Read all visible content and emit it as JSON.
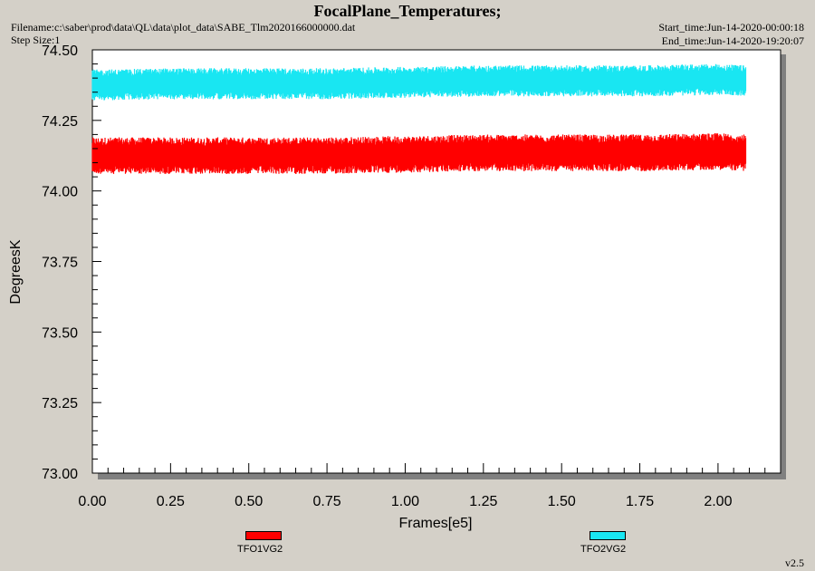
{
  "header": {
    "title": "FocalPlane_Temperatures;",
    "filename": "Filename:c:\\saber\\prod\\data\\QL\\data\\plot_data\\SABE_Tlm2020166000000.dat",
    "step_size": "Step Size:1",
    "start_time": "Start_time:Jun-14-2020-00:00:18",
    "end_time": "End_time:Jun-14-2020-19:20:07",
    "version": "v2.5"
  },
  "colors": {
    "TFO1VG2": "#ff0000",
    "TFO2VG2": "#19e6f2"
  },
  "chart_data": {
    "type": "line",
    "title": "FocalPlane_Temperatures;",
    "xlabel": "Frames[e5]",
    "ylabel": "DegreesK",
    "xlim": [
      0.0,
      2.2
    ],
    "ylim": [
      73.0,
      74.5
    ],
    "x_ticks": [
      "0.00",
      "0.25",
      "0.50",
      "0.75",
      "1.00",
      "1.25",
      "1.50",
      "1.75",
      "2.00"
    ],
    "y_ticks": [
      "73.00",
      "73.25",
      "73.50",
      "73.75",
      "74.00",
      "74.25",
      "74.50"
    ],
    "grid": false,
    "legend": "bottom",
    "series": [
      {
        "name": "TFO1VG2",
        "x_range": [
          0.0,
          2.09
        ],
        "x": [
          0.0,
          0.25,
          0.5,
          0.75,
          1.0,
          1.25,
          1.5,
          1.75,
          2.0,
          2.09
        ],
        "y_center": [
          74.125,
          74.125,
          74.125,
          74.125,
          74.13,
          74.135,
          74.135,
          74.135,
          74.14,
          74.135
        ],
        "y_min": 74.07,
        "y_max": 74.2
      },
      {
        "name": "TFO2VG2",
        "x_range": [
          0.0,
          2.09
        ],
        "x": [
          0.0,
          0.25,
          0.5,
          0.75,
          1.0,
          1.25,
          1.5,
          1.75,
          2.0,
          2.09
        ],
        "y_center": [
          74.375,
          74.38,
          74.38,
          74.38,
          74.385,
          74.39,
          74.39,
          74.39,
          74.395,
          74.39
        ],
        "y_min": 74.33,
        "y_max": 74.44
      }
    ]
  }
}
